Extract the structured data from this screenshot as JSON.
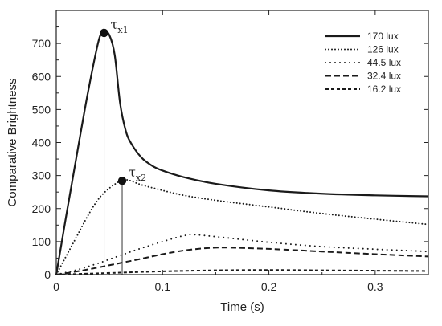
{
  "chart_data": {
    "type": "line",
    "title": "",
    "xlabel": "Time (s)",
    "ylabel": "Comparative Brightness",
    "xlim": [
      0,
      0.35
    ],
    "ylim": [
      0,
      800
    ],
    "xticks": [
      0,
      0.1,
      0.2,
      0.3
    ],
    "xtick_labels": [
      "0",
      "0.1",
      "0.2",
      "0.3"
    ],
    "yticks": [
      0,
      100,
      200,
      300,
      400,
      500,
      600,
      700
    ],
    "ytick_labels": [
      "0",
      "100",
      "200",
      "300",
      "400",
      "500",
      "600",
      "700"
    ],
    "grid": false,
    "legend_position": "top-right",
    "series": [
      {
        "name": "170 lux",
        "style": "solid",
        "x": [
          0,
          0.01,
          0.02,
          0.03,
          0.04,
          0.045,
          0.05,
          0.055,
          0.06,
          0.065,
          0.07,
          0.08,
          0.09,
          0.1,
          0.12,
          0.15,
          0.2,
          0.25,
          0.3,
          0.35
        ],
        "y": [
          0,
          190,
          375,
          555,
          710,
          735,
          725,
          665,
          520,
          440,
          400,
          355,
          330,
          315,
          295,
          275,
          255,
          245,
          240,
          237
        ]
      },
      {
        "name": "126 lux",
        "style": "dotted",
        "x": [
          0,
          0.01,
          0.02,
          0.03,
          0.04,
          0.05,
          0.06,
          0.065,
          0.07,
          0.08,
          0.1,
          0.12,
          0.15,
          0.2,
          0.25,
          0.3,
          0.35
        ],
        "y": [
          0,
          60,
          120,
          180,
          230,
          262,
          283,
          287,
          284,
          272,
          255,
          240,
          225,
          205,
          185,
          168,
          152
        ]
      },
      {
        "name": "44.5 lux",
        "style": "sparse-dotted",
        "x": [
          0,
          0.02,
          0.04,
          0.06,
          0.08,
          0.1,
          0.12,
          0.13,
          0.15,
          0.2,
          0.25,
          0.3,
          0.35
        ],
        "y": [
          0,
          15,
          35,
          58,
          80,
          100,
          118,
          121,
          115,
          98,
          85,
          77,
          70
        ]
      },
      {
        "name": "32.4 lux",
        "style": "dashed",
        "x": [
          0,
          0.02,
          0.04,
          0.06,
          0.08,
          0.1,
          0.12,
          0.14,
          0.16,
          0.2,
          0.25,
          0.3,
          0.35
        ],
        "y": [
          0,
          10,
          22,
          35,
          48,
          62,
          73,
          80,
          82,
          78,
          70,
          62,
          55
        ]
      },
      {
        "name": "16.2 lux",
        "style": "short-dashed",
        "x": [
          0,
          0.03,
          0.06,
          0.1,
          0.15,
          0.2,
          0.25,
          0.3,
          0.35
        ],
        "y": [
          0,
          3,
          6,
          10,
          13,
          14,
          13,
          12,
          11
        ]
      }
    ],
    "annotations": [
      {
        "label": "τ",
        "subscript": "x1",
        "x": 0.045,
        "y": 732
      },
      {
        "label": "τ",
        "subscript": "x2",
        "x": 0.062,
        "y": 284
      }
    ]
  }
}
